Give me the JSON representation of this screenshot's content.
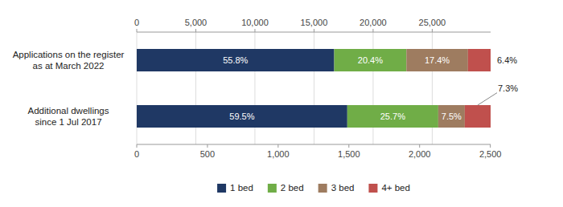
{
  "chart_data": {
    "type": "bar",
    "orientation": "horizontal",
    "stacked": true,
    "data_labels": true,
    "grid": true,
    "legend": "bottom",
    "categories": [
      "Applications on the register\nas at March 2022",
      "Additional dwellings\nsince 1 Jul 2017"
    ],
    "xlim": [
      0,
      100
    ],
    "x_axes": [
      {
        "xlim": [
          0,
          29940
        ],
        "xticks": [
          0,
          {
            "value": 5000,
            "label": "5,000"
          },
          {
            "value": 10000,
            "label": "10,000"
          },
          {
            "value": 15000,
            "label": "15,000"
          },
          {
            "value": 20000,
            "label": "20,000"
          },
          {
            "value": 25000,
            "label": "25,000"
          }
        ]
      },
      {
        "xlim": [
          0,
          2502
        ],
        "xticks": [
          0,
          500,
          {
            "value": 1000,
            "label": "1,000"
          },
          {
            "value": 1500,
            "label": "1,500"
          },
          {
            "value": 2000,
            "label": "2,000"
          },
          {
            "value": 2500,
            "label": "2,500"
          }
        ]
      }
    ],
    "series": [
      {
        "name": "1 bed",
        "color": "#1f3864",
        "values": [
          55.8,
          59.5
        ],
        "value_labels": [
          "55.8%",
          "59.5%"
        ]
      },
      {
        "name": "2 bed",
        "color": "#70ad47",
        "values": [
          20.4,
          25.7
        ],
        "value_labels": [
          "20.4%",
          "25.7%"
        ]
      },
      {
        "name": "3 bed",
        "color": "#9e7c60",
        "values": [
          17.4,
          7.5
        ],
        "value_labels": [
          "17.4%",
          "7.5%"
        ]
      },
      {
        "name": "4+ bed",
        "color": "#c0504d",
        "values": [
          6.4,
          7.3
        ],
        "value_labels": [
          "6.4%",
          "7.3%"
        ]
      }
    ]
  }
}
